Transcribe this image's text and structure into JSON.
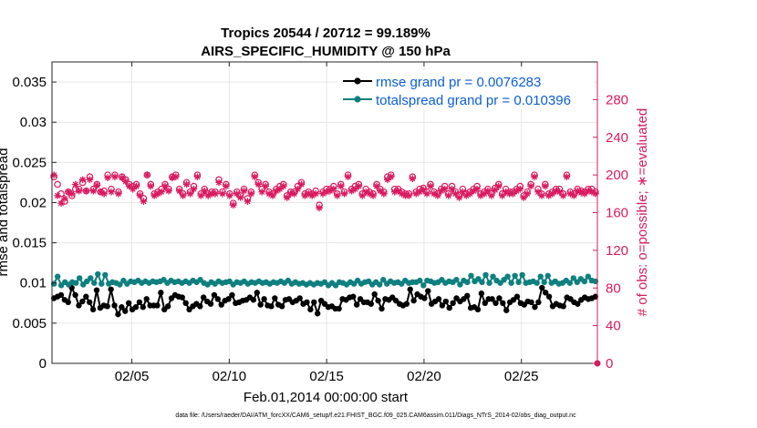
{
  "chart_data": {
    "type": "line",
    "title": "Tropics 20544 / 20712 = 99.189%",
    "subtitle": "AIRS_SPECIFIC_HUMIDITY @ 150 hPa",
    "xlabel": "Feb.01,2014 00:00:00 start",
    "ylabel_left": "rmse and totalspread",
    "ylabel_right": "# of obs: o=possible; ∗=evaluated",
    "xlim": [
      0.9,
      28.9
    ],
    "ylim_left": [
      0,
      0.0375
    ],
    "ylim_right": [
      0,
      320
    ],
    "x_ticks": [
      5,
      10,
      15,
      20,
      25
    ],
    "x_tick_labels": [
      "02/05",
      "02/10",
      "02/15",
      "02/20",
      "02/25"
    ],
    "y_left_ticks": [
      0,
      0.005,
      0.01,
      0.015,
      0.02,
      0.025,
      0.03,
      0.035
    ],
    "y_left_tick_labels": [
      "0",
      "0.005",
      "0.01",
      "0.015",
      "0.02",
      "0.025",
      "0.03",
      "0.035"
    ],
    "y_right_ticks": [
      0,
      40,
      80,
      120,
      160,
      200,
      240,
      280
    ],
    "y_right_tick_labels": [
      "0",
      "40",
      "80",
      "120",
      "160",
      "200",
      "240",
      "280"
    ],
    "grid": true,
    "legend_position": "top-right",
    "series": [
      {
        "name": "rmse grand pr = 0.0076283",
        "axis": "left",
        "color": "#000000",
        "marker": "circle",
        "values": [
          0.0081,
          0.0083,
          0.0085,
          0.0079,
          0.0076,
          0.0094,
          0.0085,
          0.0072,
          0.0077,
          0.0083,
          0.0076,
          0.0067,
          0.0091,
          0.0069,
          0.0072,
          0.0071,
          0.0092,
          0.0072,
          0.0061,
          0.007,
          0.0065,
          0.0075,
          0.0067,
          0.007,
          0.0076,
          0.007,
          0.008,
          0.0072,
          0.0072,
          0.0072,
          0.0088,
          0.0067,
          0.0071,
          0.0081,
          0.0085,
          0.0083,
          0.0082,
          0.0075,
          0.0067,
          0.0071,
          0.0074,
          0.0071,
          0.0082,
          0.0077,
          0.0074,
          0.0085,
          0.008,
          0.0073,
          0.0078,
          0.008,
          0.0085,
          0.0075,
          0.0076,
          0.0078,
          0.0079,
          0.0082,
          0.0079,
          0.0088,
          0.0073,
          0.008,
          0.0072,
          0.0071,
          0.0081,
          0.0073,
          0.0071,
          0.0079,
          0.008,
          0.0076,
          0.0078,
          0.0081,
          0.0074,
          0.0076,
          0.0067,
          0.0076,
          0.0062,
          0.0078,
          0.0074,
          0.007,
          0.0071,
          0.0068,
          0.0068,
          0.008,
          0.0079,
          0.0082,
          0.0083,
          0.0073,
          0.008,
          0.0076,
          0.0076,
          0.0074,
          0.0086,
          0.0078,
          0.0068,
          0.008,
          0.0079,
          0.0082,
          0.0078,
          0.0074,
          0.0072,
          0.0074,
          0.0092,
          0.0078,
          0.0086,
          0.0083,
          0.0081,
          0.009,
          0.0074,
          0.0077,
          0.008,
          0.0072,
          0.0077,
          0.0069,
          0.0075,
          0.0081,
          0.0077,
          0.008,
          0.0084,
          0.0069,
          0.007,
          0.0067,
          0.0087,
          0.0075,
          0.008,
          0.008,
          0.0075,
          0.0081,
          0.0075,
          0.0066,
          0.0076,
          0.0079,
          0.0083,
          0.0075,
          0.0073,
          0.0077,
          0.0076,
          0.007,
          0.0076,
          0.0094,
          0.0088,
          0.0083,
          0.0071,
          0.0074,
          0.0072,
          0.0071,
          0.0082,
          0.008,
          0.0076,
          0.0074,
          0.0079,
          0.0082,
          0.008,
          0.0081,
          0.0083
        ]
      },
      {
        "name": "totalspread grand pr = 0.010396",
        "axis": "left",
        "color": "#0f7f7f",
        "marker": "circle",
        "values": [
          0.0099,
          0.0108,
          0.0097,
          0.0101,
          0.0098,
          0.0101,
          0.01,
          0.0106,
          0.0098,
          0.0102,
          0.0106,
          0.01,
          0.0111,
          0.0099,
          0.011,
          0.0099,
          0.0101,
          0.01,
          0.0098,
          0.0103,
          0.0099,
          0.0102,
          0.0101,
          0.0103,
          0.01,
          0.0102,
          0.01,
          0.0102,
          0.0101,
          0.0102,
          0.0104,
          0.01,
          0.0103,
          0.0101,
          0.0102,
          0.01,
          0.0102,
          0.01,
          0.0103,
          0.0101,
          0.0104,
          0.01,
          0.0098,
          0.0101,
          0.0099,
          0.0102,
          0.01,
          0.0101,
          0.0102,
          0.0098,
          0.0101,
          0.01,
          0.0102,
          0.0099,
          0.0101,
          0.01,
          0.0102,
          0.01,
          0.0101,
          0.0099,
          0.0101,
          0.01,
          0.0102,
          0.01,
          0.0103,
          0.0099,
          0.0101,
          0.0099,
          0.01,
          0.0098,
          0.01,
          0.0098,
          0.01,
          0.0099,
          0.0101,
          0.0097,
          0.01,
          0.0097,
          0.0101,
          0.01,
          0.0098,
          0.0101,
          0.0099,
          0.0103,
          0.0099,
          0.0101,
          0.0102,
          0.0098,
          0.0101,
          0.0098,
          0.0104,
          0.0099,
          0.0102,
          0.01,
          0.0101,
          0.0099,
          0.0103,
          0.01,
          0.0101,
          0.0101,
          0.0103,
          0.0097,
          0.0103,
          0.0102,
          0.01,
          0.0101,
          0.0104,
          0.01,
          0.0102,
          0.0101,
          0.0104,
          0.0098,
          0.0103,
          0.0101,
          0.0109,
          0.0102,
          0.0105,
          0.0101,
          0.011,
          0.01,
          0.0108,
          0.0103,
          0.01,
          0.0104,
          0.0108,
          0.01,
          0.0109,
          0.0101,
          0.011,
          0.01,
          0.0101,
          0.0102,
          0.01,
          0.0108,
          0.0101,
          0.0109,
          0.01,
          0.0102,
          0.0099,
          0.01,
          0.0103,
          0.01,
          0.0106,
          0.0101,
          0.0105,
          0.0102,
          0.0108,
          0.0103,
          0.0102
        ]
      },
      {
        "name": "# of obs possible",
        "axis": "right",
        "color": "#d81b60",
        "marker": "circle-open",
        "values": [
          198,
          190,
          180,
          172,
          182,
          178,
          185,
          185,
          192,
          183,
          198,
          185,
          190,
          182,
          183,
          200,
          185,
          200,
          182,
          198,
          195,
          190,
          188,
          190,
          180,
          175,
          200,
          190,
          180,
          182,
          185,
          190,
          185,
          198,
          200,
          185,
          180,
          192,
          182,
          188,
          200,
          180,
          185,
          180,
          182,
          182,
          195,
          182,
          190,
          180,
          170,
          182,
          178,
          185,
          175,
          182,
          200,
          192,
          185,
          190,
          182,
          180,
          185,
          188,
          190,
          178,
          182,
          182,
          188,
          192,
          180,
          182,
          180,
          183,
          168,
          182,
          185,
          185,
          188,
          180,
          190,
          182,
          200,
          185,
          188,
          190,
          180,
          185,
          182,
          180,
          190,
          185,
          182,
          198,
          200,
          185,
          185,
          182,
          180,
          180,
          198,
          182,
          185,
          186,
          182,
          190,
          182,
          180,
          185,
          188,
          180,
          188,
          182,
          178,
          185,
          180,
          182,
          185,
          188,
          180,
          182,
          185,
          180,
          186,
          190,
          180,
          185,
          182,
          182,
          185,
          188,
          178,
          182,
          190,
          200,
          185,
          180,
          190,
          180,
          182,
          185,
          185,
          180,
          200,
          182,
          180,
          185,
          183,
          182,
          185,
          185,
          182
        ]
      },
      {
        "name": "# of obs evaluated",
        "axis": "right",
        "color": "#d81b60",
        "marker": "asterisk",
        "values": [
          200,
          178,
          170,
          175,
          182,
          180,
          190,
          183,
          195,
          183,
          195,
          183,
          189,
          182,
          180,
          197,
          182,
          198,
          180,
          197,
          193,
          188,
          185,
          188,
          178,
          172,
          200,
          188,
          178,
          180,
          182,
          188,
          183,
          197,
          198,
          183,
          178,
          190,
          180,
          185,
          198,
          178,
          183,
          178,
          180,
          180,
          192,
          180,
          188,
          178,
          168,
          180,
          176,
          183,
          172,
          180,
          198,
          190,
          182,
          188,
          180,
          178,
          183,
          185,
          188,
          176,
          180,
          180,
          185,
          190,
          178,
          180,
          178,
          180,
          165,
          180,
          182,
          183,
          185,
          178,
          188,
          180,
          198,
          183,
          185,
          188,
          178,
          182,
          180,
          178,
          188,
          183,
          180,
          195,
          198,
          182,
          183,
          180,
          178,
          178,
          196,
          180,
          182,
          184,
          180,
          188,
          180,
          178,
          183,
          185,
          178,
          185,
          180,
          176,
          182,
          178,
          180,
          183,
          185,
          178,
          180,
          183,
          178,
          184,
          188,
          178,
          182,
          180,
          180,
          183,
          185,
          176,
          180,
          188,
          198,
          182,
          178,
          188,
          178,
          180,
          183,
          182,
          178,
          198,
          180,
          178,
          183,
          181,
          180,
          183,
          182,
          180
        ]
      }
    ],
    "footnote": "data file: /Users/raeder/DAI/ATM_forcXX/CAM6_setup/f.e21.FHIST_BGC.f09_025.CAM6assim.011/Diags_NTrS_2014-02/obs_diag_output.nc"
  }
}
